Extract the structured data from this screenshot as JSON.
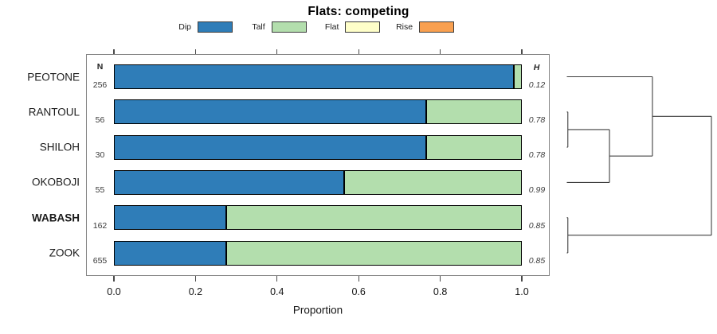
{
  "title": "Flats: competing",
  "columns": {
    "n_header": "N",
    "h_header": "H"
  },
  "xlabel": "Proportion",
  "legend": {
    "items": [
      {
        "label": "Dip",
        "color": "#2f7db8"
      },
      {
        "label": "Talf",
        "color": "#b3dead"
      },
      {
        "label": "Flat",
        "color": "#ffffc9"
      },
      {
        "label": "Rise",
        "color": "#f9a050"
      }
    ]
  },
  "chart_data": {
    "type": "bar",
    "stacked": true,
    "orientation": "horizontal",
    "title": "Flats: competing",
    "xlabel": "Proportion",
    "xlim": [
      0,
      1
    ],
    "xticks": [
      0.0,
      0.2,
      0.4,
      0.6,
      0.8,
      1.0
    ],
    "xtick_labels": [
      "0.0",
      "0.2",
      "0.4",
      "0.6",
      "0.8",
      "1.0"
    ],
    "categories": [
      "PEOTONE",
      "RANTOUL",
      "SHILOH",
      "OKOBOJI",
      "WABASH",
      "ZOOK"
    ],
    "emphasized_category": "WABASH",
    "n_values": [
      256,
      56,
      30,
      55,
      162,
      655
    ],
    "h_values": [
      "0.12",
      "0.78",
      "0.78",
      "0.99",
      "0.85",
      "0.85"
    ],
    "series": [
      {
        "name": "Dip",
        "color": "#2f7db8",
        "values": [
          0.98,
          0.765,
          0.765,
          0.565,
          0.275,
          0.275
        ]
      },
      {
        "name": "Talf",
        "color": "#b3dead",
        "values": [
          0.02,
          0.235,
          0.235,
          0.435,
          0.725,
          0.725
        ]
      },
      {
        "name": "Flat",
        "color": "#ffffc9",
        "values": [
          0,
          0,
          0,
          0,
          0,
          0
        ]
      },
      {
        "name": "Rise",
        "color": "#f9a050",
        "values": [
          0,
          0,
          0,
          0,
          0,
          0
        ]
      }
    ],
    "legend_position": "top",
    "grid": false
  },
  "dendrogram": {
    "side": "right",
    "tree": {
      "height": 1.0,
      "children": [
        {
          "height": 0.592,
          "children": [
            {
              "leaf": "PEOTONE"
            },
            {
              "height": 0.295,
              "children": [
                {
                  "height": 0.007,
                  "children": [
                    {
                      "leaf": "RANTOUL"
                    },
                    {
                      "leaf": "SHILOH"
                    }
                  ]
                },
                {
                  "leaf": "OKOBOJI"
                }
              ]
            }
          ]
        },
        {
          "height": 0.007,
          "children": [
            {
              "leaf": "WABASH"
            },
            {
              "leaf": "ZOOK"
            }
          ]
        }
      ]
    }
  }
}
